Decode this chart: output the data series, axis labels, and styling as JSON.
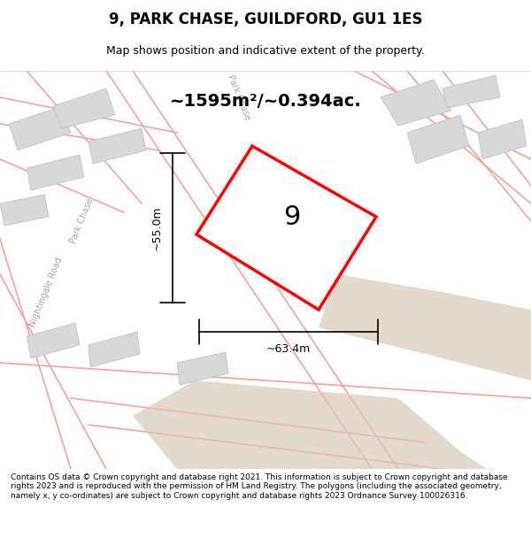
{
  "title": "9, PARK CHASE, GUILDFORD, GU1 1ES",
  "subtitle": "Map shows position and indicative extent of the property.",
  "area_text": "~1595m²/~0.394ac.",
  "label": "9",
  "dim_width": "~63.4m",
  "dim_height": "~55.0m",
  "footer": "Contains OS data © Crown copyright and database right 2021. This information is subject to Crown copyright and database rights 2023 and is reproduced with the permission of HM Land Registry. The polygons (including the associated geometry, namely x, y co-ordinates) are subject to Crown copyright and database rights 2023 Ordnance Survey 100026316.",
  "bg_color": "#f5f5f5",
  "map_bg": "#f0eeee",
  "plot_fill": "#ffffff",
  "plot_edge": "#ff0000",
  "road_color": "#f5a0a0",
  "building_color": "#d8d8d8",
  "tan_color": "#d9c9b8",
  "road_label_color": "#b0a0a0",
  "figsize": [
    6.0,
    6.25
  ],
  "dpi": 100
}
